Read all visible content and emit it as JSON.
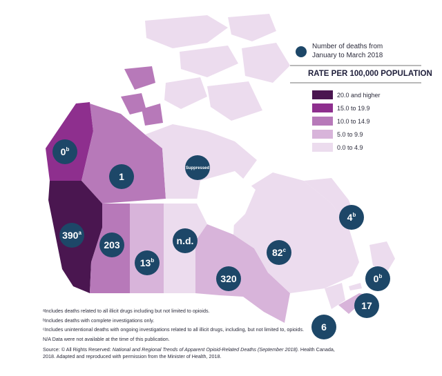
{
  "legend": {
    "deaths_label_line1": "Number of deaths from",
    "deaths_label_line2": "January to March 2018",
    "rate_title": "RATE PER 100,000 POPULATION",
    "classes": [
      {
        "label": "20.0 and higher",
        "color": "#4a1650"
      },
      {
        "label": "15.0 to 19.9",
        "color": "#8e2f8e"
      },
      {
        "label": "10.0 to 14.9",
        "color": "#b779b9"
      },
      {
        "label": "5.0 to 9.9",
        "color": "#d8b4da"
      },
      {
        "label": "0.0 to 4.9",
        "color": "#ecdcee"
      }
    ],
    "marker_color": "#1d4768"
  },
  "regions": [
    {
      "id": "yukon",
      "rate_class": "15.0 to 19.9",
      "deaths": "0",
      "sup": "b"
    },
    {
      "id": "northwest-territories",
      "rate_class": "10.0 to 14.9",
      "deaths": "1",
      "sup": ""
    },
    {
      "id": "nunavut",
      "rate_class": "0.0 to 4.9",
      "deaths": "Suppressed",
      "sup": ""
    },
    {
      "id": "british-columbia",
      "rate_class": "20.0 and higher",
      "deaths": "390",
      "sup": "a"
    },
    {
      "id": "alberta",
      "rate_class": "10.0 to 14.9",
      "deaths": "203",
      "sup": ""
    },
    {
      "id": "saskatchewan",
      "rate_class": "5.0 to 9.9",
      "deaths": "13",
      "sup": "b"
    },
    {
      "id": "manitoba",
      "rate_class": "0.0 to 4.9",
      "deaths": "n.d.",
      "sup": ""
    },
    {
      "id": "ontario",
      "rate_class": "5.0 to 9.9",
      "deaths": "320",
      "sup": ""
    },
    {
      "id": "quebec",
      "rate_class": "0.0 to 4.9",
      "deaths": "82",
      "sup": "c"
    },
    {
      "id": "newfoundland-and-labrador",
      "rate_class": "0.0 to 4.9",
      "deaths": "4",
      "sup": "b"
    },
    {
      "id": "prince-edward-island",
      "rate_class": "0.0 to 4.9",
      "deaths": "0",
      "sup": "b"
    },
    {
      "id": "nova-scotia",
      "rate_class": "5.0 to 9.9",
      "deaths": "17",
      "sup": ""
    },
    {
      "id": "new-brunswick",
      "rate_class": "0.0 to 4.9",
      "deaths": "6",
      "sup": ""
    }
  ],
  "footnotes": {
    "a": "ᵃIncludes deaths related to all illicit drugs including but not limited to opioids.",
    "b": "ᵇIncludes deaths with complete investigations only.",
    "c": "ᶜIncludes unintentional deaths with ongoing investigations related to all illicit drugs, including, but not limited to, opioids.",
    "na": "N/A Data were not available at the time of this publication.",
    "source_prefix": "Source: © All Rights Reserved: ",
    "source_title": "National and Regional Trends of Apparent Opioid-Related Deaths (September 2018).",
    "source_suffix": " Health Canada, 2018. Adapted and reproduced with permission from the Minister of Health, 2018."
  }
}
